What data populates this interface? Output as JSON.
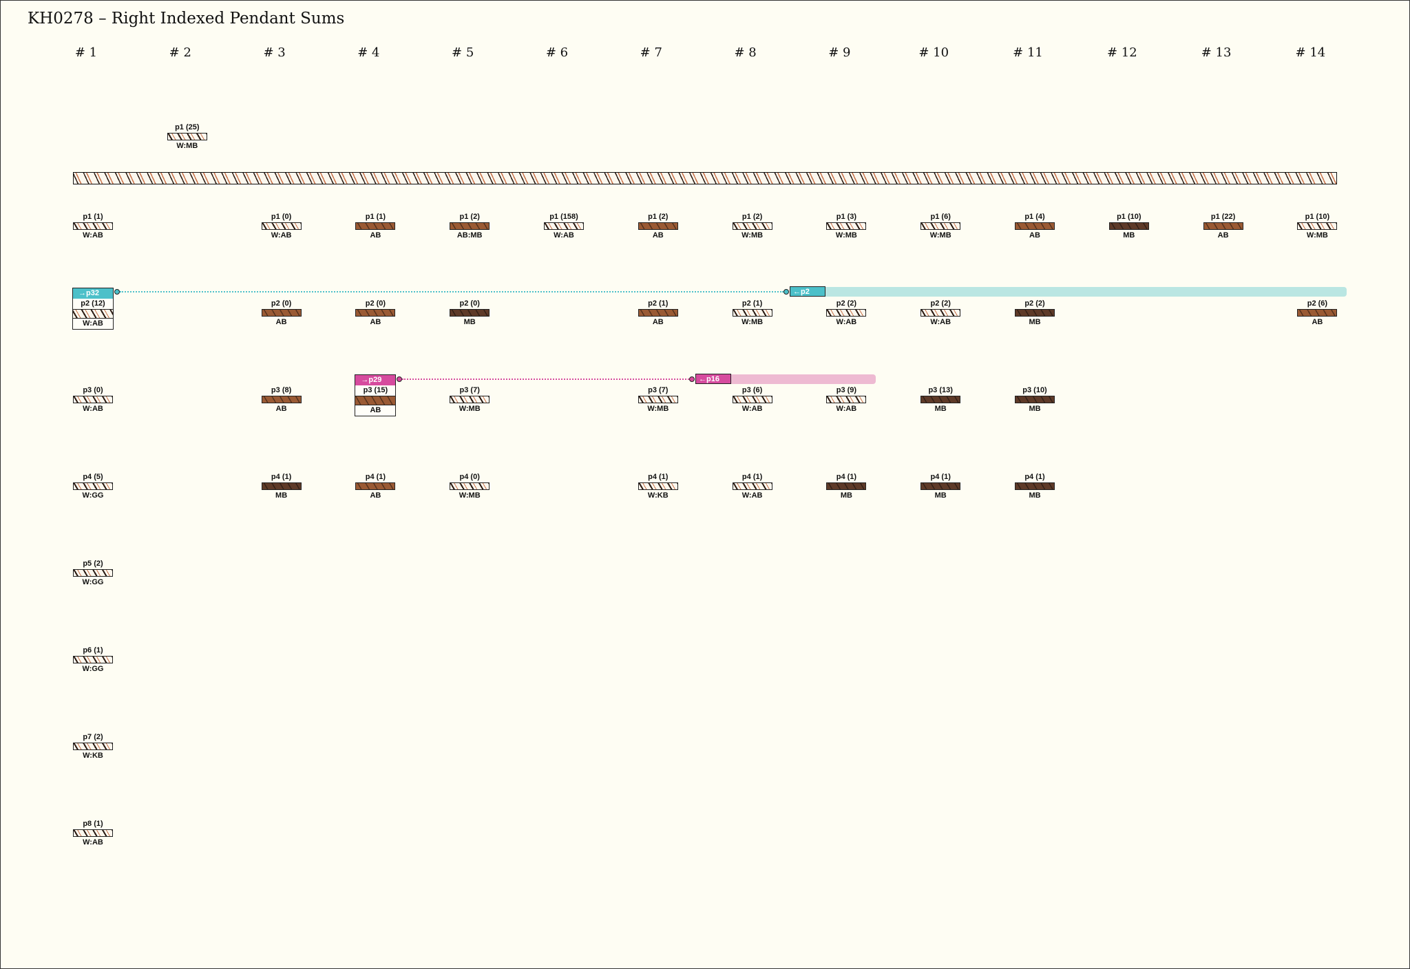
{
  "title": "KH0278 – Right Indexed Pendant Sums",
  "columns": [
    "# 1",
    "# 2",
    "# 3",
    "# 4",
    "# 5",
    "# 6",
    "# 7",
    "# 8",
    "# 9",
    "# 10",
    "# 11",
    "# 12",
    "# 13",
    "# 14"
  ],
  "top_cord": {
    "label": "p1 (25)",
    "type": "W:MB",
    "bar": "striped"
  },
  "pendants": {
    "p1": [
      {
        "col": 1,
        "label": "p1 (1)",
        "type": "W:AB",
        "bar": "striped"
      },
      {
        "col": 3,
        "label": "p1 (0)",
        "type": "W:AB",
        "bar": "striped"
      },
      {
        "col": 4,
        "label": "p1 (1)",
        "type": "AB",
        "bar": "AB"
      },
      {
        "col": 5,
        "label": "p1 (2)",
        "type": "AB:MB",
        "bar": "AB"
      },
      {
        "col": 6,
        "label": "p1 (158)",
        "type": "W:AB",
        "bar": "striped"
      },
      {
        "col": 7,
        "label": "p1 (2)",
        "type": "AB",
        "bar": "AB"
      },
      {
        "col": 8,
        "label": "p1 (2)",
        "type": "W:MB",
        "bar": "striped"
      },
      {
        "col": 9,
        "label": "p1 (3)",
        "type": "W:MB",
        "bar": "striped"
      },
      {
        "col": 10,
        "label": "p1 (6)",
        "type": "W:MB",
        "bar": "striped"
      },
      {
        "col": 11,
        "label": "p1 (4)",
        "type": "AB",
        "bar": "AB"
      },
      {
        "col": 12,
        "label": "p1 (10)",
        "type": "MB",
        "bar": "MB"
      },
      {
        "col": 13,
        "label": "p1 (22)",
        "type": "AB",
        "bar": "AB"
      },
      {
        "col": 14,
        "label": "p1 (10)",
        "type": "W:MB",
        "bar": "striped"
      }
    ],
    "p2": [
      {
        "col": 3,
        "label": "p2 (0)",
        "type": "AB",
        "bar": "AB"
      },
      {
        "col": 4,
        "label": "p2 (0)",
        "type": "AB",
        "bar": "AB"
      },
      {
        "col": 5,
        "label": "p2 (0)",
        "type": "MB",
        "bar": "MB"
      },
      {
        "col": 7,
        "label": "p2 (1)",
        "type": "AB",
        "bar": "AB"
      },
      {
        "col": 8,
        "label": "p2 (1)",
        "type": "W:MB",
        "bar": "striped"
      },
      {
        "col": 9,
        "label": "p2 (2)",
        "type": "W:AB",
        "bar": "striped"
      },
      {
        "col": 10,
        "label": "p2 (2)",
        "type": "W:AB",
        "bar": "striped"
      },
      {
        "col": 11,
        "label": "p2 (2)",
        "type": "MB",
        "bar": "MB"
      },
      {
        "col": 14,
        "label": "p2 (6)",
        "type": "AB",
        "bar": "AB"
      }
    ],
    "p3": [
      {
        "col": 1,
        "label": "p3 (0)",
        "type": "W:AB",
        "bar": "striped"
      },
      {
        "col": 3,
        "label": "p3 (8)",
        "type": "AB",
        "bar": "AB"
      },
      {
        "col": 5,
        "label": "p3 (7)",
        "type": "W:MB",
        "bar": "striped"
      },
      {
        "col": 7,
        "label": "p3 (7)",
        "type": "W:MB",
        "bar": "striped"
      },
      {
        "col": 8,
        "label": "p3 (6)",
        "type": "W:AB",
        "bar": "striped"
      },
      {
        "col": 9,
        "label": "p3 (9)",
        "type": "W:AB",
        "bar": "striped"
      },
      {
        "col": 10,
        "label": "p3 (13)",
        "type": "MB",
        "bar": "MB"
      },
      {
        "col": 11,
        "label": "p3 (10)",
        "type": "MB",
        "bar": "MB"
      }
    ],
    "p4": [
      {
        "col": 1,
        "label": "p4 (5)",
        "type": "W:GG",
        "bar": "striped"
      },
      {
        "col": 3,
        "label": "p4 (1)",
        "type": "MB",
        "bar": "MB"
      },
      {
        "col": 4,
        "label": "p4 (1)",
        "type": "AB",
        "bar": "AB"
      },
      {
        "col": 5,
        "label": "p4 (0)",
        "type": "W:MB",
        "bar": "striped"
      },
      {
        "col": 7,
        "label": "p4 (1)",
        "type": "W:KB",
        "bar": "striped"
      },
      {
        "col": 8,
        "label": "p4 (1)",
        "type": "W:AB",
        "bar": "striped"
      },
      {
        "col": 9,
        "label": "p4 (1)",
        "type": "MB",
        "bar": "MB"
      },
      {
        "col": 10,
        "label": "p4 (1)",
        "type": "MB",
        "bar": "MB"
      },
      {
        "col": 11,
        "label": "p4 (1)",
        "type": "MB",
        "bar": "MB"
      }
    ],
    "p5": [
      {
        "col": 1,
        "label": "p5 (2)",
        "type": "W:GG",
        "bar": "striped"
      }
    ],
    "p6": [
      {
        "col": 1,
        "label": "p6 (1)",
        "type": "W:GG",
        "bar": "striped"
      }
    ],
    "p7": [
      {
        "col": 1,
        "label": "p7 (2)",
        "type": "W:KB",
        "bar": "striped"
      }
    ],
    "p8": [
      {
        "col": 1,
        "label": "p8 (1)",
        "type": "W:AB",
        "bar": "striped"
      }
    ]
  },
  "sum_links": [
    {
      "source_col": 1,
      "source_label": "p2 (12)",
      "source_type": "W:AB",
      "source_bar": "striped",
      "source_tag": "→p32",
      "target_col": 9,
      "target_tag": "←p2",
      "color": "#4cc0c9"
    },
    {
      "source_col": 4,
      "source_label": "p3 (15)",
      "source_type": "AB",
      "source_bar": "AB",
      "source_tag": "→p29",
      "target_col": 8,
      "target_tag": "←p16",
      "color": "#d64b9e"
    }
  ],
  "colors": {
    "AB": "#9a5a34",
    "MB": "#5e3a28",
    "W": "#fbf7ee",
    "stripe": "#2a1a12",
    "accent": "#c8724a"
  }
}
